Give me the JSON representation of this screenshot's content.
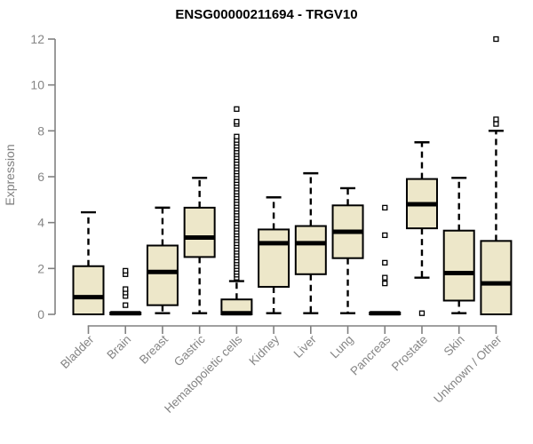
{
  "page": {
    "background": "#ffffff"
  },
  "chart_data": {
    "type": "boxplot",
    "title": "ENSG00000211694 - TRGV10",
    "ylabel": "Expression",
    "xlabel": "",
    "ylim": [
      0,
      12
    ],
    "yticks": [
      0,
      2,
      4,
      6,
      8,
      10,
      12
    ],
    "grid": false,
    "legend": "none",
    "categories": [
      "Bladder",
      "Brain",
      "Breast",
      "Gastric",
      "Hematopoietic cells",
      "Kidney",
      "Liver",
      "Lung",
      "Pancreas",
      "Prostate",
      "Skin",
      "Unknown / Other"
    ],
    "series": [
      {
        "name": "Bladder",
        "whisker_low": 0,
        "q1": 0,
        "median": 0.75,
        "q3": 2.1,
        "whisker_high": 4.45,
        "outliers": []
      },
      {
        "name": "Brain",
        "whisker_low": 0,
        "q1": 0,
        "median": 0.05,
        "q3": 0.08,
        "whisker_high": 0.08,
        "outliers": [
          0.4,
          0.8,
          0.95,
          1.1,
          1.75,
          1.9
        ]
      },
      {
        "name": "Breast",
        "whisker_low": 0.05,
        "q1": 0.4,
        "median": 1.85,
        "q3": 3.0,
        "whisker_high": 4.65,
        "outliers": []
      },
      {
        "name": "Gastric",
        "whisker_low": 0.05,
        "q1": 2.5,
        "median": 3.35,
        "q3": 4.65,
        "whisker_high": 5.95,
        "outliers": []
      },
      {
        "name": "Hematopoietic cells",
        "whisker_low": 0,
        "q1": 0,
        "median": 0.05,
        "q3": 0.65,
        "whisker_high": 1.45,
        "outliers": [
          1.6,
          1.73,
          1.85,
          1.98,
          2.1,
          2.23,
          2.35,
          2.48,
          2.6,
          2.73,
          2.85,
          2.98,
          3.1,
          3.23,
          3.35,
          3.48,
          3.6,
          3.73,
          3.85,
          3.98,
          4.1,
          4.23,
          4.35,
          4.48,
          4.6,
          4.73,
          4.85,
          4.98,
          5.1,
          5.23,
          5.35,
          5.48,
          5.6,
          5.73,
          5.85,
          5.98,
          6.1,
          6.23,
          6.35,
          6.48,
          6.6,
          6.73,
          6.85,
          6.98,
          7.1,
          7.23,
          7.35,
          7.48,
          7.6,
          7.75,
          8.3,
          8.4,
          8.95
        ]
      },
      {
        "name": "Kidney",
        "whisker_low": 0.05,
        "q1": 1.2,
        "median": 3.1,
        "q3": 3.7,
        "whisker_high": 5.1,
        "outliers": []
      },
      {
        "name": "Liver",
        "whisker_low": 0.05,
        "q1": 1.75,
        "median": 3.1,
        "q3": 3.85,
        "whisker_high": 6.15,
        "outliers": []
      },
      {
        "name": "Lung",
        "whisker_low": 0.05,
        "q1": 2.45,
        "median": 3.6,
        "q3": 4.75,
        "whisker_high": 5.5,
        "outliers": []
      },
      {
        "name": "Pancreas",
        "whisker_low": 0,
        "q1": 0,
        "median": 0.05,
        "q3": 0.08,
        "whisker_high": 0.08,
        "outliers": [
          1.35,
          1.6,
          2.25,
          3.45,
          4.65
        ]
      },
      {
        "name": "Prostate",
        "whisker_low": 1.6,
        "q1": 3.75,
        "median": 4.8,
        "q3": 5.9,
        "whisker_high": 7.5,
        "outliers": [
          0.05
        ]
      },
      {
        "name": "Skin",
        "whisker_low": 0.05,
        "q1": 0.6,
        "median": 1.8,
        "q3": 3.65,
        "whisker_high": 5.95,
        "outliers": []
      },
      {
        "name": "Unknown / Other",
        "whisker_low": 0,
        "q1": 0,
        "median": 1.35,
        "q3": 3.2,
        "whisker_high": 8.0,
        "outliers": [
          8.3,
          8.5,
          12.0
        ]
      }
    ],
    "colors": {
      "box_fill": "#EDE7C9",
      "box_border": "#000000",
      "median": "#000000",
      "whisker": "#000000",
      "outlier_border": "#000000",
      "outlier_fill": "#ffffff",
      "axis": "#808080",
      "tick_label": "#858585",
      "title": "#000000"
    }
  }
}
